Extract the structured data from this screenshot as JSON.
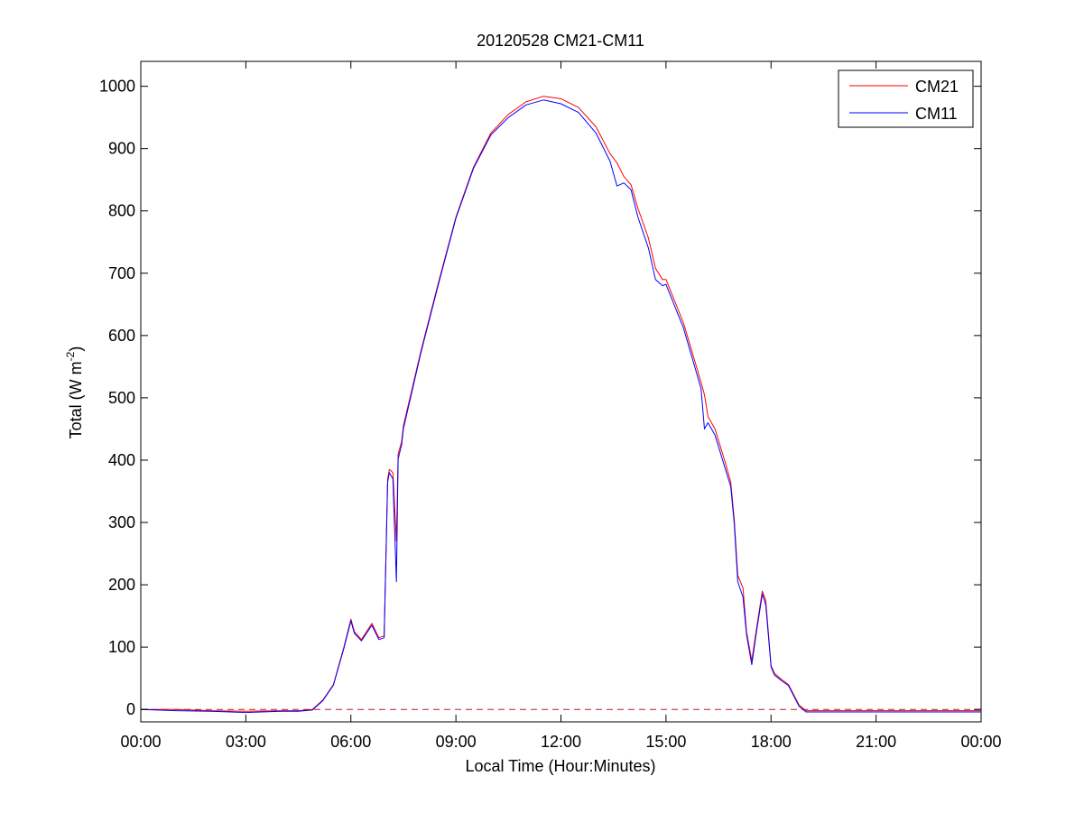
{
  "chart_data": {
    "type": "line",
    "title": "20120528 CM21-CM11",
    "xlabel": "Local Time (Hour:Minutes)",
    "ylabel": "Total (W m-2)",
    "ylabel_parts": {
      "main": "Total (W m",
      "sup": "-2",
      "end": ")"
    },
    "xlim": [
      0,
      24
    ],
    "ylim": [
      -20,
      1040
    ],
    "x_ticks": [
      0,
      3,
      6,
      9,
      12,
      15,
      18,
      21,
      24
    ],
    "x_tick_labels": [
      "00:00",
      "03:00",
      "06:00",
      "09:00",
      "12:00",
      "15:00",
      "18:00",
      "21:00",
      "00:00"
    ],
    "y_ticks": [
      0,
      100,
      200,
      300,
      400,
      500,
      600,
      700,
      800,
      900,
      1000
    ],
    "y_tick_labels": [
      "0",
      "100",
      "200",
      "300",
      "400",
      "500",
      "600",
      "700",
      "800",
      "900",
      "1000"
    ],
    "grid": false,
    "legend_position": "top-right",
    "zero_reference": {
      "y": 0,
      "style": "dashed",
      "color": "#b22222"
    },
    "colors": {
      "CM21": "#ff0000",
      "CM11": "#0000ff"
    },
    "series": [
      {
        "name": "CM21",
        "x": [
          0,
          1.0,
          2.0,
          3.0,
          4.0,
          4.5,
          4.9,
          5.2,
          5.5,
          5.8,
          6.0,
          6.1,
          6.3,
          6.6,
          6.8,
          6.95,
          7.05,
          7.1,
          7.2,
          7.3,
          7.35,
          7.45,
          7.5,
          8.0,
          8.5,
          9.0,
          9.5,
          10.0,
          10.5,
          11.0,
          11.5,
          12.0,
          12.5,
          13.0,
          13.4,
          13.6,
          13.8,
          14.0,
          14.2,
          14.5,
          14.7,
          14.9,
          15.0,
          15.5,
          16.0,
          16.1,
          16.2,
          16.4,
          16.7,
          16.85,
          16.95,
          17.05,
          17.2,
          17.3,
          17.45,
          17.6,
          17.75,
          17.85,
          18.0,
          18.1,
          18.3,
          18.5,
          18.8,
          19.0,
          20.0,
          21.0,
          22.0,
          24.0
        ],
        "y": [
          0,
          0,
          -2,
          -3,
          -2,
          -2,
          0,
          15,
          40,
          100,
          145,
          125,
          112,
          138,
          115,
          118,
          370,
          385,
          380,
          270,
          410,
          430,
          455,
          575,
          685,
          790,
          870,
          925,
          955,
          975,
          984,
          980,
          966,
          935,
          892,
          877,
          855,
          842,
          804,
          756,
          708,
          690,
          690,
          620,
          525,
          505,
          470,
          450,
          395,
          365,
          305,
          215,
          195,
          125,
          78,
          135,
          190,
          175,
          70,
          58,
          48,
          40,
          7,
          -2,
          -2,
          -2,
          -2,
          -2
        ]
      },
      {
        "name": "CM11",
        "x": [
          0,
          1.0,
          2.0,
          3.0,
          4.0,
          4.5,
          4.9,
          5.2,
          5.5,
          5.8,
          6.0,
          6.1,
          6.3,
          6.6,
          6.8,
          6.95,
          7.05,
          7.1,
          7.2,
          7.3,
          7.35,
          7.45,
          7.5,
          8.0,
          8.5,
          9.0,
          9.5,
          10.0,
          10.5,
          11.0,
          11.5,
          12.0,
          12.5,
          13.0,
          13.4,
          13.6,
          13.8,
          14.0,
          14.2,
          14.5,
          14.7,
          14.9,
          15.0,
          15.5,
          16.0,
          16.1,
          16.2,
          16.4,
          16.7,
          16.85,
          16.95,
          17.05,
          17.2,
          17.3,
          17.45,
          17.6,
          17.75,
          17.85,
          18.0,
          18.1,
          18.3,
          18.5,
          18.8,
          19.0,
          20.0,
          21.0,
          22.0,
          24.0
        ],
        "y": [
          0,
          -2,
          -3,
          -5,
          -3,
          -3,
          -1,
          14,
          39,
          98,
          142,
          122,
          110,
          135,
          112,
          115,
          365,
          380,
          370,
          205,
          402,
          425,
          450,
          572,
          682,
          788,
          868,
          922,
          950,
          970,
          978,
          972,
          958,
          925,
          880,
          840,
          845,
          834,
          790,
          740,
          690,
          680,
          682,
          612,
          515,
          450,
          460,
          440,
          385,
          358,
          298,
          205,
          180,
          120,
          72,
          130,
          185,
          168,
          68,
          55,
          46,
          38,
          5,
          -4,
          -4,
          -4,
          -4,
          -4
        ]
      }
    ]
  }
}
